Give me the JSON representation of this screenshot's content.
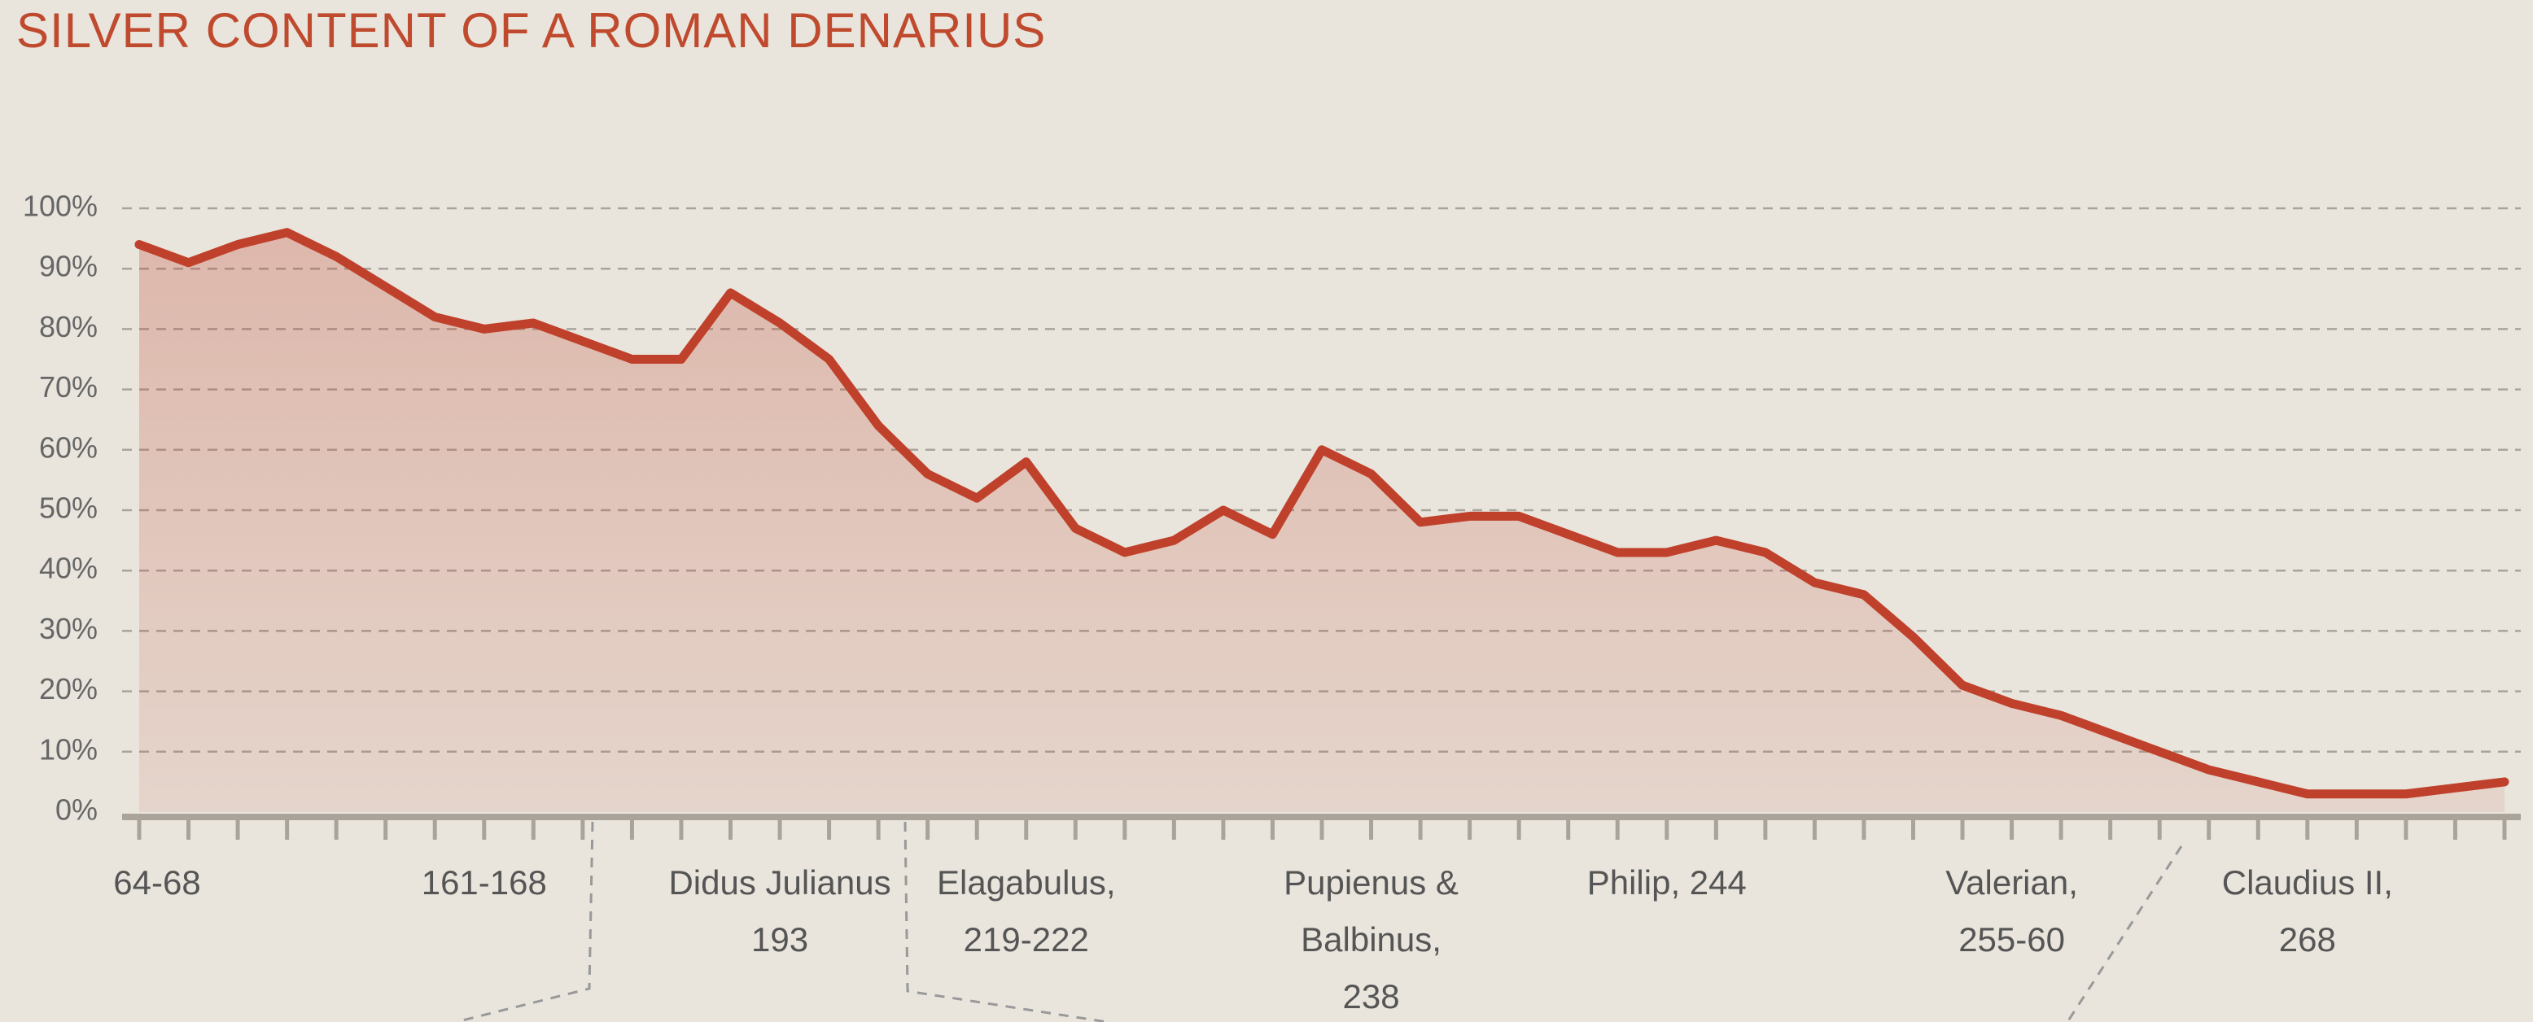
{
  "chart_data": {
    "type": "line",
    "title": "SILVER CONTENT OF A ROMAN DENARIUS",
    "categories": [
      [
        "64-68"
      ],
      null,
      null,
      null,
      null,
      null,
      null,
      [
        "161-168"
      ],
      null,
      null,
      null,
      null,
      null,
      [
        "Didus Julianus",
        "193"
      ],
      null,
      null,
      null,
      null,
      [
        "Elagabulus,",
        "219-222"
      ],
      null,
      null,
      null,
      null,
      null,
      null,
      [
        "Pupienus &",
        "Balbinus,",
        "238"
      ],
      null,
      null,
      null,
      null,
      null,
      [
        "Philip, 244"
      ],
      null,
      null,
      null,
      null,
      null,
      null,
      [
        "Valerian,",
        "255-60"
      ],
      null,
      null,
      null,
      null,
      null,
      [
        "Claudius II,",
        "268"
      ],
      null,
      null,
      null,
      null
    ],
    "series": [
      {
        "color": "#c0412b",
        "values": [
          94,
          91,
          94,
          96,
          92,
          87,
          82,
          80,
          81,
          78,
          75,
          75,
          86,
          81,
          75,
          64,
          56,
          52,
          58,
          47,
          43,
          45,
          50,
          46,
          60,
          56,
          48,
          49,
          49,
          46,
          43,
          43,
          45,
          43,
          38,
          36,
          29,
          21,
          18,
          16,
          13,
          10,
          7,
          5,
          3,
          3,
          3,
          4,
          5
        ]
      }
    ],
    "ylim": [
      0,
      100
    ],
    "yticks": [
      {
        "value": 0,
        "label": "0%"
      },
      {
        "value": 10,
        "label": "10%"
      },
      {
        "value": 20,
        "label": "20%"
      },
      {
        "value": 30,
        "label": "30%"
      },
      {
        "value": 40,
        "label": "40%"
      },
      {
        "value": 50,
        "label": "50%"
      },
      {
        "value": 60,
        "label": "60%"
      },
      {
        "value": 70,
        "label": "70%"
      },
      {
        "value": 80,
        "label": "80%"
      },
      {
        "value": 90,
        "label": "90%"
      },
      {
        "value": 100,
        "label": "100%"
      }
    ],
    "grid": true
  }
}
